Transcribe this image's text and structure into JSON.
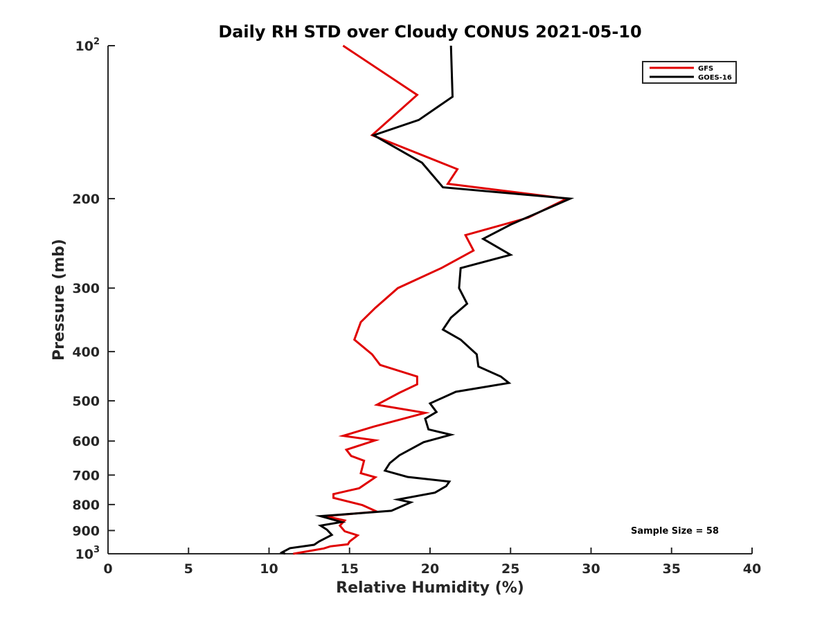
{
  "chart_data": {
    "type": "line",
    "title": "Daily RH STD over Cloudy CONUS 2021-05-10",
    "xlabel": "Relative Humidity (%)",
    "ylabel": "Pressure (mb)",
    "xlim": [
      0,
      40
    ],
    "ylim": [
      100,
      1000
    ],
    "y_scale": "log",
    "y_reversed": true,
    "x_ticks": [
      "0",
      "5",
      "10",
      "15",
      "20",
      "25",
      "30",
      "35",
      "40"
    ],
    "y_ticks": [
      {
        "value": 100,
        "label": "10",
        "sup": "2"
      },
      {
        "value": 200,
        "label": "200"
      },
      {
        "value": 300,
        "label": "300"
      },
      {
        "value": 400,
        "label": "400"
      },
      {
        "value": 500,
        "label": "500"
      },
      {
        "value": 600,
        "label": "600"
      },
      {
        "value": 700,
        "label": "700"
      },
      {
        "value": 800,
        "label": "800"
      },
      {
        "value": 900,
        "label": "900"
      },
      {
        "value": 1000,
        "label": "10",
        "sup": "3"
      }
    ],
    "legend_position": "top-right",
    "annotation": "Sample Size = 58",
    "colors": {
      "GFS": "#e00000",
      "GOES-16": "#000000"
    },
    "series": [
      {
        "name": "GFS",
        "color": "#e00000",
        "points": [
          [
            14.6,
            100
          ],
          [
            19.2,
            125
          ],
          [
            16.4,
            150
          ],
          [
            21.7,
            175
          ],
          [
            21.1,
            187
          ],
          [
            28.5,
            200
          ],
          [
            26.1,
            218
          ],
          [
            22.2,
            236
          ],
          [
            22.7,
            253
          ],
          [
            20.7,
            274
          ],
          [
            18.0,
            300
          ],
          [
            16.6,
            328
          ],
          [
            15.7,
            350
          ],
          [
            15.3,
            379
          ],
          [
            16.4,
            405
          ],
          [
            16.9,
            425
          ],
          [
            19.2,
            448
          ],
          [
            19.2,
            464
          ],
          [
            18.1,
            482
          ],
          [
            16.7,
            509
          ],
          [
            19.7,
            528
          ],
          [
            16.5,
            562
          ],
          [
            14.6,
            586
          ],
          [
            16.6,
            598
          ],
          [
            14.8,
            624
          ],
          [
            15.1,
            642
          ],
          [
            15.9,
            656
          ],
          [
            15.7,
            694
          ],
          [
            16.6,
            707
          ],
          [
            15.6,
            743
          ],
          [
            14.0,
            763
          ],
          [
            14.0,
            776
          ],
          [
            15.8,
            802
          ],
          [
            16.7,
            826
          ],
          [
            13.5,
            843
          ],
          [
            14.7,
            860
          ],
          [
            14.4,
            880
          ],
          [
            14.7,
            903
          ],
          [
            15.5,
            920
          ],
          [
            15.0,
            946
          ],
          [
            14.9,
            958
          ],
          [
            13.8,
            967
          ],
          [
            13.4,
            976
          ],
          [
            11.5,
            1000
          ]
        ]
      },
      {
        "name": "GOES-16",
        "color": "#000000",
        "points": [
          [
            21.3,
            100
          ],
          [
            21.4,
            126
          ],
          [
            19.3,
            140
          ],
          [
            16.5,
            150
          ],
          [
            19.5,
            170
          ],
          [
            20.8,
            190
          ],
          [
            28.7,
            200
          ],
          [
            25.0,
            225
          ],
          [
            23.3,
            240
          ],
          [
            25.0,
            258
          ],
          [
            21.9,
            274
          ],
          [
            21.8,
            300
          ],
          [
            22.3,
            322
          ],
          [
            21.3,
            343
          ],
          [
            20.8,
            362
          ],
          [
            21.9,
            379
          ],
          [
            22.9,
            405
          ],
          [
            23.0,
            428
          ],
          [
            24.4,
            448
          ],
          [
            24.9,
            461
          ],
          [
            21.6,
            480
          ],
          [
            20.0,
            506
          ],
          [
            20.4,
            526
          ],
          [
            19.7,
            542
          ],
          [
            19.9,
            569
          ],
          [
            21.3,
            583
          ],
          [
            19.6,
            603
          ],
          [
            18.1,
            640
          ],
          [
            17.5,
            663
          ],
          [
            17.2,
            686
          ],
          [
            18.6,
            706
          ],
          [
            21.2,
            721
          ],
          [
            21.0,
            736
          ],
          [
            20.3,
            758
          ],
          [
            18.0,
            782
          ],
          [
            18.8,
            792
          ],
          [
            17.6,
            823
          ],
          [
            13.2,
            843
          ],
          [
            14.5,
            866
          ],
          [
            13.2,
            880
          ],
          [
            13.6,
            897
          ],
          [
            13.9,
            918
          ],
          [
            13.1,
            946
          ],
          [
            12.8,
            960
          ],
          [
            11.3,
            975
          ],
          [
            10.8,
            994
          ],
          [
            11.0,
            1000
          ]
        ]
      }
    ]
  }
}
